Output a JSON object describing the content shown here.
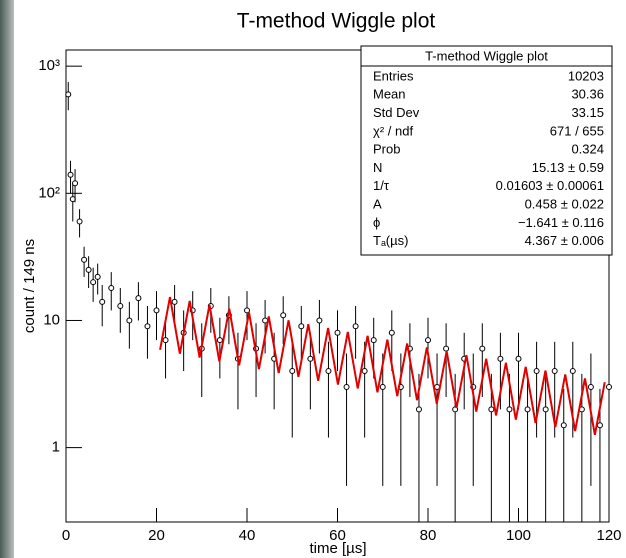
{
  "chart_data": {
    "type": "scatter",
    "title": "T-method Wiggle plot",
    "x_label": "time [µs]",
    "y_label": "count / 149 ns",
    "log_y": true,
    "xlim": [
      0,
      120
    ],
    "ylim": [
      0.26,
      1340
    ],
    "xticks": [
      0,
      20,
      40,
      60,
      80,
      100,
      120
    ],
    "yticks": [
      1,
      10,
      {
        "value": 100,
        "label": "10²"
      },
      {
        "value": 1000,
        "label": "10³"
      }
    ],
    "series": [
      {
        "color": "#000000",
        "x": [
          0.5,
          1,
          1.5,
          2,
          3,
          4,
          5,
          6,
          7,
          8,
          10,
          12,
          14,
          16,
          18,
          20,
          22,
          24,
          26,
          28,
          30,
          32,
          34,
          36,
          38,
          40,
          42,
          44,
          46,
          48,
          50,
          52,
          54,
          56,
          58,
          60,
          62,
          64,
          66,
          68,
          70,
          72,
          74,
          76,
          78,
          80,
          82,
          84,
          86,
          88,
          90,
          92,
          94,
          96,
          98,
          100,
          102,
          104,
          106,
          108,
          110,
          112,
          114,
          116,
          118,
          120
        ],
        "values": [
          600,
          140,
          90,
          120,
          60,
          30,
          25,
          20,
          22,
          14,
          18,
          13,
          10,
          15,
          9,
          12,
          7,
          14,
          8,
          12,
          6,
          13,
          7,
          11,
          5,
          12,
          6,
          10,
          5,
          11,
          4,
          9,
          5,
          10,
          4,
          8,
          3,
          9,
          4,
          7,
          3,
          8,
          3,
          6,
          2,
          7,
          3,
          6,
          2,
          5,
          3,
          6,
          2,
          5,
          2,
          5,
          2,
          4,
          2,
          4,
          1.5,
          4,
          2,
          3,
          1.5,
          3
        ],
        "errors": [
          150,
          40,
          30,
          35,
          15,
          8,
          7,
          6,
          6,
          5,
          6,
          5,
          4,
          5,
          4,
          5,
          3.5,
          5,
          4,
          5,
          3.5,
          5,
          3.5,
          4.5,
          3,
          5,
          3.5,
          4.5,
          3,
          4.5,
          2.8,
          4,
          3,
          4.5,
          2.8,
          4,
          2.5,
          4,
          2.8,
          3.5,
          2.5,
          4,
          2.5,
          3.5,
          1.8,
          3.5,
          2.5,
          3.5,
          1.8,
          3,
          2.5,
          3.5,
          1.8,
          3,
          1.8,
          3,
          1.8,
          2.8,
          1.8,
          2.8,
          1.4,
          2.8,
          1.8,
          2.5,
          1.4,
          2.5
        ]
      },
      {
        "color": "#e00000",
        "x": [
          20.79,
          22.98,
          25.16,
          27.34,
          29.53,
          31.71,
          33.89,
          36.08,
          38.26,
          40.45,
          42.63,
          44.81,
          47.0,
          49.18,
          51.36,
          53.55,
          55.73,
          57.92,
          60.1,
          62.28,
          64.47,
          66.65,
          68.83,
          71.02,
          73.2,
          75.39,
          77.57,
          79.75,
          81.94,
          84.12,
          86.3,
          88.49,
          90.67,
          92.86,
          95.04,
          97.22,
          99.41,
          101.59,
          103.77,
          105.96,
          108.14,
          110.33,
          112.51,
          114.69,
          116.88,
          119.06
        ],
        "values": [
          5.88,
          15.27,
          5.48,
          14.23,
          5.11,
          13.27,
          4.76,
          12.38,
          4.44,
          11.53,
          4.14,
          10.76,
          3.86,
          10.03,
          3.6,
          9.35,
          3.35,
          8.72,
          3.13,
          8.12,
          2.92,
          7.57,
          2.72,
          7.07,
          2.54,
          6.59,
          2.36,
          6.14,
          2.21,
          5.73,
          2.05,
          5.34,
          1.92,
          4.99,
          1.79,
          4.65,
          1.66,
          4.32,
          1.56,
          4.04,
          1.45,
          3.76,
          1.35,
          3.5,
          1.26,
          3.27
        ]
      }
    ],
    "stats_box": {
      "title": "T-method Wiggle plot",
      "rows": [
        [
          "Entries",
          "10203"
        ],
        [
          "Mean",
          "30.36"
        ],
        [
          "Std Dev",
          "33.15"
        ],
        [
          "χ² / ndf",
          "671 / 655"
        ],
        [
          "Prob",
          "0.324"
        ],
        [
          "N",
          "15.13 ± 0.59"
        ],
        [
          "1/τ",
          "0.01603 ± 0.00061"
        ],
        [
          "A",
          "0.458 ± 0.022"
        ],
        [
          "ϕ",
          "−1.641 ± 0.116"
        ],
        [
          "Tₐ(µs)",
          "4.367 ± 0.006"
        ]
      ]
    }
  }
}
